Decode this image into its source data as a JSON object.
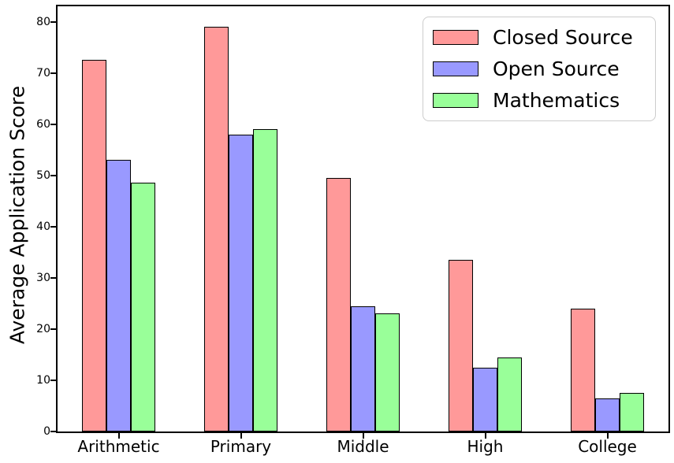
{
  "chart_data": {
    "type": "bar",
    "title": "",
    "xlabel": "",
    "ylabel": "Average Application Score",
    "categories": [
      "Arithmetic",
      "Primary",
      "Middle",
      "High",
      "College"
    ],
    "series": [
      {
        "name": "Closed Source",
        "color": "#FF9999",
        "values": [
          72.5,
          79,
          49.5,
          33.5,
          24
        ]
      },
      {
        "name": "Open Source",
        "color": "#9999FF",
        "values": [
          53,
          58,
          24.5,
          12.5,
          6.5
        ]
      },
      {
        "name": "Mathematics",
        "color": "#99FF99",
        "values": [
          48.5,
          59,
          23,
          14.5,
          7.5
        ]
      }
    ],
    "bar_edge_color": "#000000",
    "yticks": [
      0,
      10,
      20,
      30,
      40,
      50,
      60,
      70,
      80
    ],
    "ylim": [
      0,
      83
    ],
    "grid": false,
    "legend_position": "upper right",
    "legend_edge_color": "#cccccc"
  }
}
